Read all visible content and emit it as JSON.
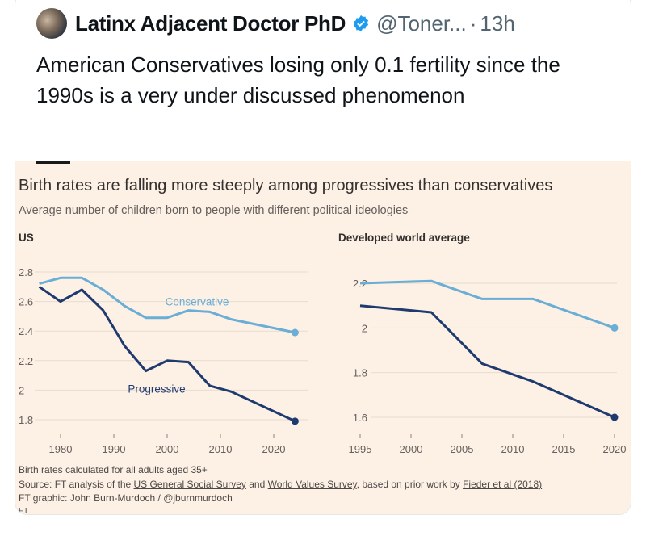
{
  "tweet": {
    "author_name": "Latinx Adjacent Doctor PhD",
    "handle": "@Toner...",
    "separator": "·",
    "time": "13h",
    "text": "American Conservatives losing only 0.1 fertility since the 1990s is a very under discussed phenomenon",
    "verified_color": "#1d9bf0"
  },
  "chart": {
    "title": "Birth rates are falling more steeply among progressives than conservatives",
    "subtitle": "Average number of children born to people with different political ideologies",
    "footer": {
      "note": "Birth rates calculated for all adults aged 35+",
      "source_prefix": "Source: FT analysis of the ",
      "source_link1": "US General Social Survey",
      "source_mid": " and ",
      "source_link2": "World Values Survey",
      "source_mid2": ", based on prior work by ",
      "source_link3": "Fieder et al (2018)",
      "credit": "FT graphic: John Burn-Murdoch / @jburnmurdoch",
      "logo": "FT"
    }
  },
  "chart_data": [
    {
      "type": "line",
      "title": "US",
      "xlim": [
        1974,
        2026
      ],
      "ylim": [
        1.75,
        2.85
      ],
      "xticks": [
        1980,
        1990,
        2000,
        2010,
        2020
      ],
      "yticks": [
        1.8,
        2,
        2.2,
        2.4,
        2.6,
        2.8
      ],
      "ytick_labels": [
        "1.8",
        "2",
        "2.2",
        "2.4",
        "2.6",
        "2.8"
      ],
      "grid": true,
      "series": [
        {
          "name": "Conservative",
          "color": "#6aaed6",
          "x": [
            1976,
            1980,
            1984,
            1988,
            1992,
            1996,
            2000,
            2004,
            2008,
            2012,
            2024
          ],
          "y": [
            2.72,
            2.76,
            2.76,
            2.68,
            2.57,
            2.49,
            2.49,
            2.54,
            2.53,
            2.48,
            2.39
          ]
        },
        {
          "name": "Progressive",
          "color": "#1e3a6e",
          "x": [
            1976,
            1980,
            1984,
            1988,
            1992,
            1996,
            2000,
            2004,
            2008,
            2012,
            2024
          ],
          "y": [
            2.7,
            2.6,
            2.68,
            2.54,
            2.3,
            2.13,
            2.2,
            2.19,
            2.03,
            1.99,
            1.79
          ]
        }
      ]
    },
    {
      "type": "line",
      "title": "Developed world average",
      "xlim": [
        1995,
        2020
      ],
      "ylim": [
        1.55,
        2.25
      ],
      "xticks": [
        1995,
        2000,
        2005,
        2010,
        2015,
        2020
      ],
      "yticks": [
        1.6,
        1.8,
        2,
        2.2
      ],
      "ytick_labels": [
        "1.6",
        "1.8",
        "2",
        "2.2"
      ],
      "grid": true,
      "series": [
        {
          "color": "#6aaed6",
          "x": [
            1995,
            2002,
            2007,
            2012,
            2020
          ],
          "y": [
            2.2,
            2.21,
            2.13,
            2.13,
            2.0
          ]
        },
        {
          "color": "#1e3a6e",
          "x": [
            1995,
            2002,
            2007,
            2012,
            2020
          ],
          "y": [
            2.1,
            2.07,
            1.84,
            1.76,
            1.6
          ]
        }
      ]
    }
  ]
}
